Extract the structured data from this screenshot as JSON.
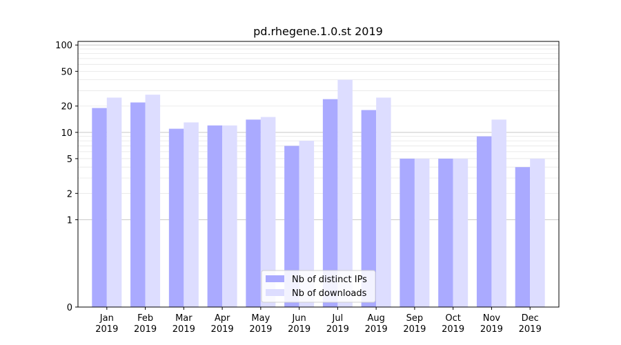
{
  "chart_data": {
    "type": "bar",
    "title": "pd.rhegene.1.0.st 2019",
    "xlabel": "",
    "ylabel": "",
    "yscale": "symlog",
    "ylim": [
      0,
      110
    ],
    "yticks": [
      0,
      1,
      2,
      5,
      10,
      20,
      50,
      100
    ],
    "ytick_labels": [
      "0",
      "1",
      "2",
      "5",
      "10",
      "20",
      "50",
      "100"
    ],
    "categories": [
      "Jan\n2019",
      "Feb\n2019",
      "Mar\n2019",
      "Apr\n2019",
      "May\n2019",
      "Jun\n2019",
      "Jul\n2019",
      "Aug\n2019",
      "Sep\n2019",
      "Oct\n2019",
      "Nov\n2019",
      "Dec\n2019"
    ],
    "series": [
      {
        "name": "Nb of distinct IPs",
        "color": "#aaaaff",
        "values": [
          19,
          22,
          11,
          12,
          14,
          7,
          24,
          18,
          5,
          5,
          9,
          4
        ]
      },
      {
        "name": "Nb of downloads",
        "color": "#ddddff",
        "values": [
          25,
          27,
          13,
          12,
          15,
          8,
          40,
          25,
          5,
          5,
          14,
          5
        ]
      }
    ],
    "legend": "bottom-center",
    "grid": "y"
  }
}
